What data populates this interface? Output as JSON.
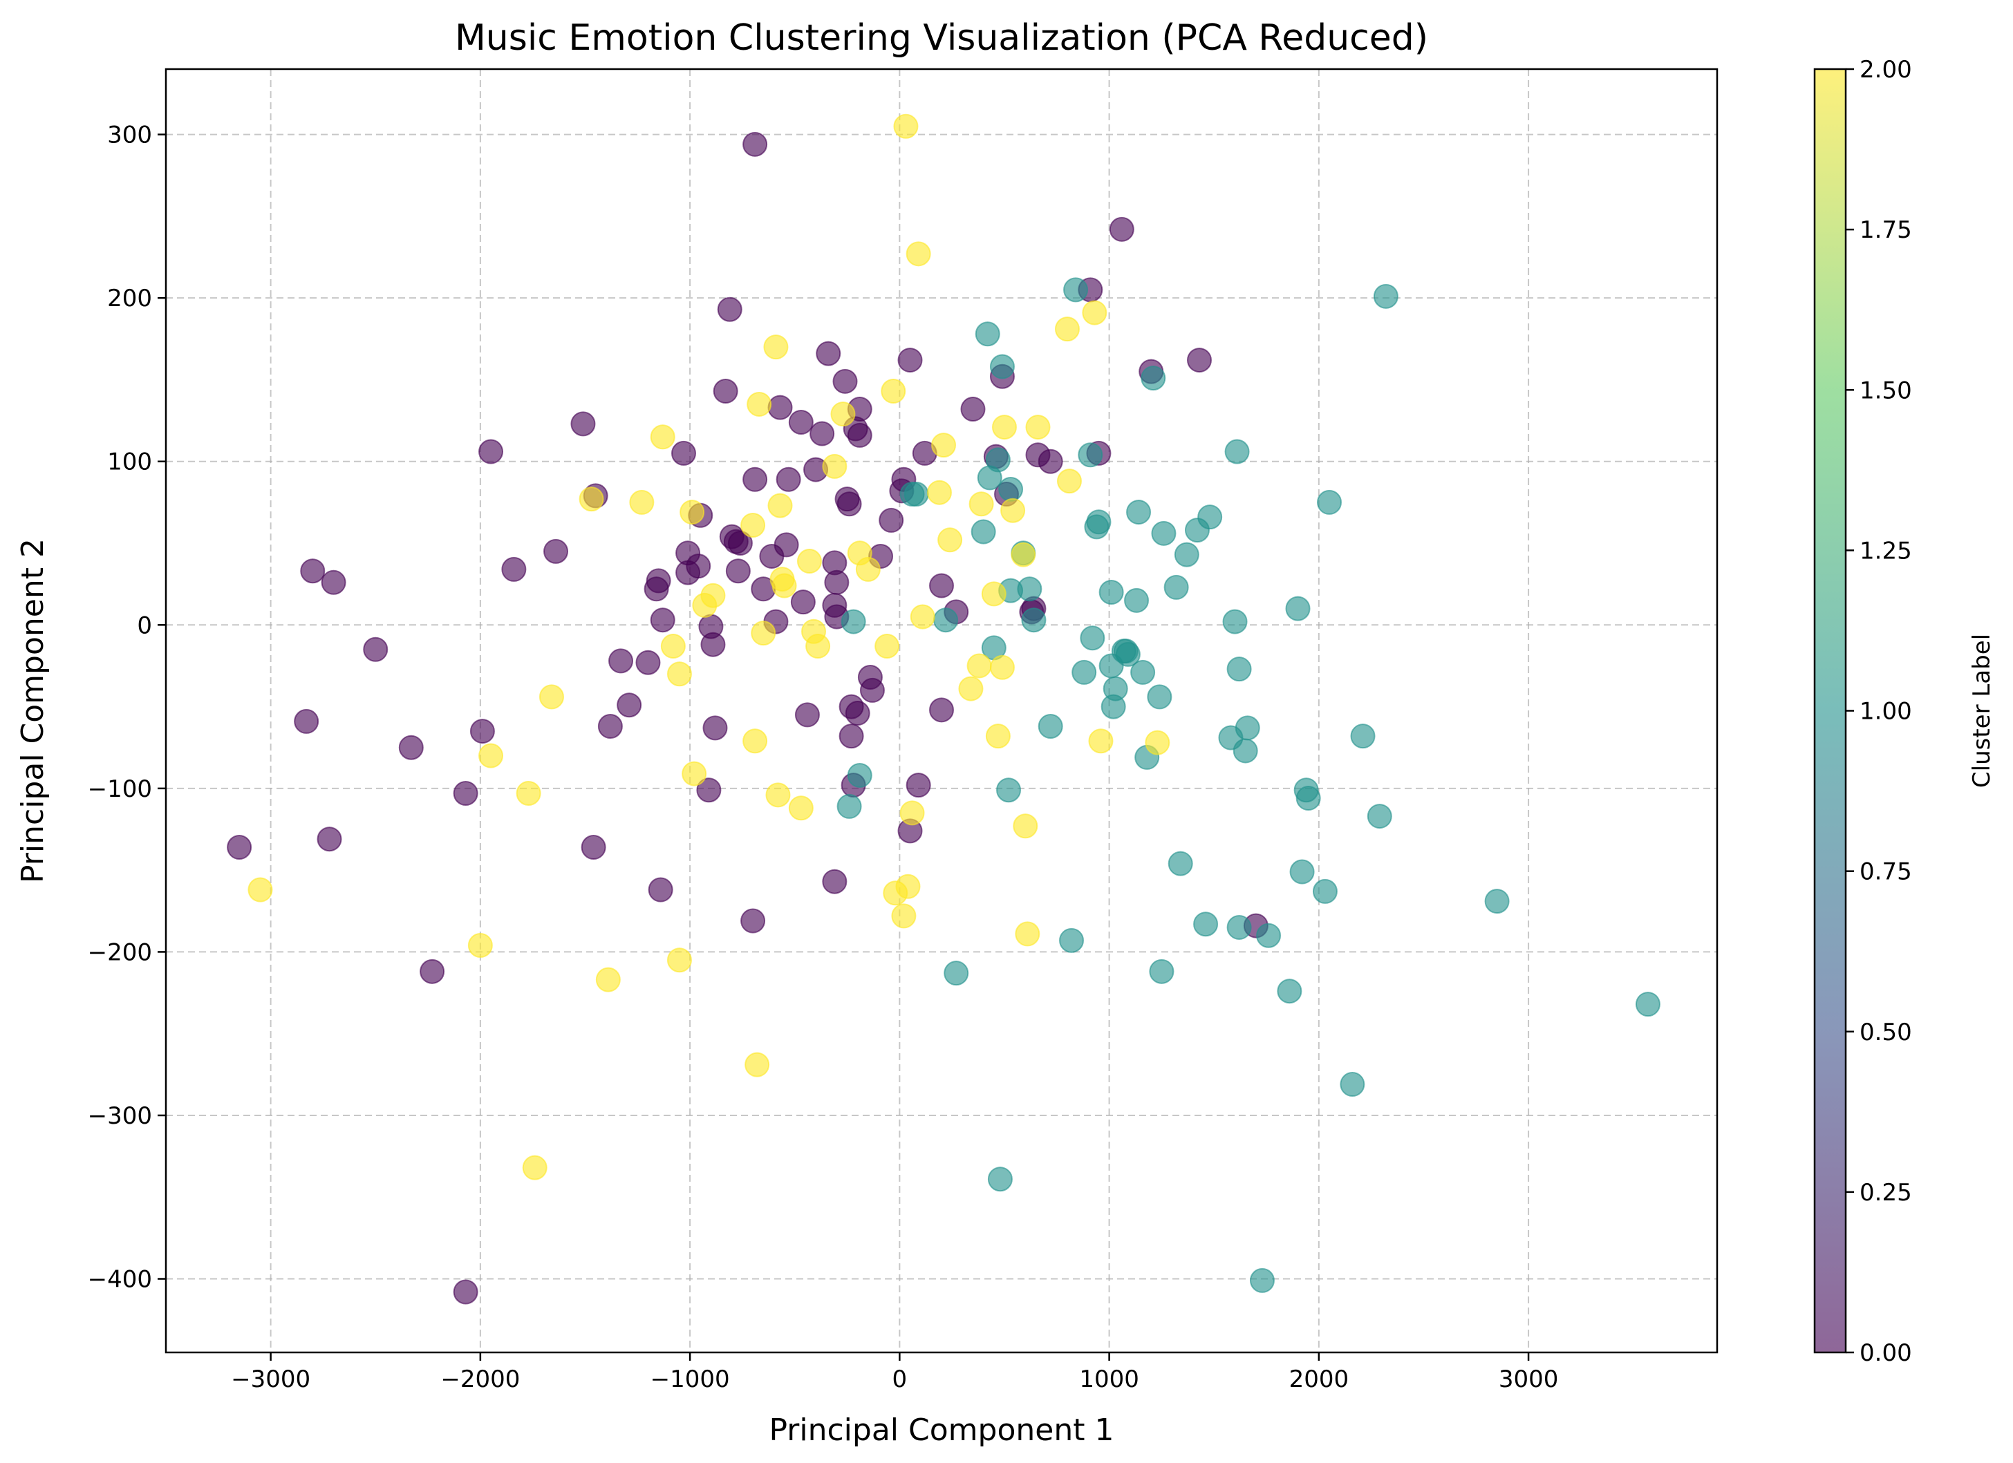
{
  "chart_data": {
    "type": "scatter",
    "title": "Music Emotion Clustering Visualization (PCA Reduced)",
    "xlabel": "Principal Component 1",
    "ylabel": "Principal Component 2",
    "xlim": [
      -3500,
      3900
    ],
    "ylim": [
      -445,
      340
    ],
    "xticks": [
      -3000,
      -2000,
      -1000,
      0,
      1000,
      2000,
      3000
    ],
    "xtick_labels": [
      "−3000",
      "−2000",
      "−1000",
      "0",
      "1000",
      "2000",
      "3000"
    ],
    "yticks": [
      -400,
      -300,
      -200,
      -100,
      0,
      100,
      200,
      300
    ],
    "ytick_labels": [
      "−400",
      "−300",
      "−200",
      "−100",
      "0",
      "100",
      "200",
      "300"
    ],
    "grid": true,
    "marker_alpha": 0.6,
    "colorbar": {
      "label": "Cluster Label",
      "range": [
        0,
        2
      ],
      "ticks": [
        0,
        0.25,
        0.5,
        0.75,
        1.0,
        1.25,
        1.5,
        1.75,
        2.0
      ],
      "tick_labels": [
        "0.00",
        "0.25",
        "0.50",
        "0.75",
        "1.00",
        "1.25",
        "1.50",
        "1.75",
        "2.00"
      ],
      "colormap_stops": [
        "#440154",
        "#3b528b",
        "#21918c",
        "#5ec962",
        "#fde725"
      ]
    },
    "series": [
      {
        "cluster": 0,
        "color": "#440154",
        "points": [
          [
            -3150,
            -136
          ],
          [
            -2800,
            33
          ],
          [
            -2720,
            -131
          ],
          [
            -2700,
            26
          ],
          [
            -2830,
            -59
          ],
          [
            -2500,
            -15
          ],
          [
            -2330,
            -75
          ],
          [
            -2230,
            -212
          ],
          [
            -2070,
            -103
          ],
          [
            -2070,
            -408
          ],
          [
            -1990,
            -65
          ],
          [
            -1950,
            106
          ],
          [
            -1840,
            34
          ],
          [
            -1640,
            45
          ],
          [
            -1510,
            123
          ],
          [
            -1450,
            79
          ],
          [
            -1460,
            -136
          ],
          [
            -1380,
            -62
          ],
          [
            -1330,
            -22
          ],
          [
            -1290,
            -49
          ],
          [
            -1200,
            -23
          ],
          [
            -1160,
            22
          ],
          [
            -1150,
            27
          ],
          [
            -1140,
            -162
          ],
          [
            -1130,
            3
          ],
          [
            -1030,
            105
          ],
          [
            -1010,
            32
          ],
          [
            -1010,
            44
          ],
          [
            -960,
            36
          ],
          [
            -950,
            67
          ],
          [
            -900,
            -1
          ],
          [
            -890,
            -12
          ],
          [
            -910,
            -101
          ],
          [
            -880,
            -63
          ],
          [
            -830,
            143
          ],
          [
            -810,
            193
          ],
          [
            -800,
            54
          ],
          [
            -780,
            51
          ],
          [
            -760,
            50
          ],
          [
            -770,
            33
          ],
          [
            -690,
            294
          ],
          [
            -690,
            89
          ],
          [
            -700,
            -181
          ],
          [
            -650,
            22
          ],
          [
            -610,
            42
          ],
          [
            -590,
            2
          ],
          [
            -570,
            133
          ],
          [
            -540,
            49
          ],
          [
            -530,
            89
          ],
          [
            -470,
            124
          ],
          [
            -460,
            14
          ],
          [
            -440,
            -55
          ],
          [
            -400,
            95
          ],
          [
            -370,
            117
          ],
          [
            -340,
            166
          ],
          [
            -310,
            38
          ],
          [
            -310,
            12
          ],
          [
            -300,
            26
          ],
          [
            -310,
            -157
          ],
          [
            -300,
            5
          ],
          [
            -260,
            149
          ],
          [
            -250,
            77
          ],
          [
            -240,
            74
          ],
          [
            -230,
            -50
          ],
          [
            -230,
            -68
          ],
          [
            -220,
            -98
          ],
          [
            -210,
            120
          ],
          [
            -200,
            -54
          ],
          [
            -190,
            116
          ],
          [
            -190,
            132
          ],
          [
            -140,
            -32
          ],
          [
            -130,
            -40
          ],
          [
            -90,
            42
          ],
          [
            -40,
            64
          ],
          [
            10,
            82
          ],
          [
            20,
            89
          ],
          [
            50,
            162
          ],
          [
            50,
            -126
          ],
          [
            90,
            -98
          ],
          [
            120,
            105
          ],
          [
            200,
            24
          ],
          [
            200,
            -52
          ],
          [
            270,
            8
          ],
          [
            350,
            132
          ],
          [
            460,
            103
          ],
          [
            490,
            152
          ],
          [
            510,
            80
          ],
          [
            640,
            10
          ],
          [
            630,
            8
          ],
          [
            660,
            104
          ],
          [
            720,
            100
          ],
          [
            910,
            205
          ],
          [
            950,
            105
          ],
          [
            1060,
            242
          ],
          [
            1200,
            155
          ],
          [
            1430,
            162
          ],
          [
            1700,
            -184
          ]
        ]
      },
      {
        "cluster": 1,
        "color": "#21918c",
        "points": [
          [
            -220,
            2
          ],
          [
            -190,
            -92
          ],
          [
            -240,
            -111
          ],
          [
            60,
            80
          ],
          [
            80,
            80
          ],
          [
            220,
            3
          ],
          [
            270,
            -213
          ],
          [
            400,
            57
          ],
          [
            420,
            178
          ],
          [
            430,
            90
          ],
          [
            450,
            -14
          ],
          [
            470,
            101
          ],
          [
            480,
            -339
          ],
          [
            490,
            158
          ],
          [
            520,
            -101
          ],
          [
            530,
            83
          ],
          [
            530,
            21
          ],
          [
            590,
            44
          ],
          [
            620,
            22
          ],
          [
            640,
            3
          ],
          [
            720,
            -62
          ],
          [
            820,
            -193
          ],
          [
            840,
            205
          ],
          [
            880,
            -29
          ],
          [
            910,
            104
          ],
          [
            920,
            -8
          ],
          [
            940,
            60
          ],
          [
            950,
            63
          ],
          [
            1010,
            20
          ],
          [
            1010,
            -25
          ],
          [
            1020,
            -50
          ],
          [
            1030,
            -39
          ],
          [
            1070,
            -16
          ],
          [
            1080,
            -16
          ],
          [
            1090,
            -18
          ],
          [
            1130,
            15
          ],
          [
            1140,
            69
          ],
          [
            1160,
            -29
          ],
          [
            1180,
            -81
          ],
          [
            1210,
            151
          ],
          [
            1240,
            -44
          ],
          [
            1250,
            -212
          ],
          [
            1260,
            56
          ],
          [
            1320,
            23
          ],
          [
            1340,
            -146
          ],
          [
            1370,
            43
          ],
          [
            1420,
            58
          ],
          [
            1460,
            -183
          ],
          [
            1480,
            66
          ],
          [
            1580,
            -69
          ],
          [
            1600,
            2
          ],
          [
            1610,
            106
          ],
          [
            1620,
            -27
          ],
          [
            1620,
            -185
          ],
          [
            1650,
            -77
          ],
          [
            1660,
            -63
          ],
          [
            1730,
            -401
          ],
          [
            1760,
            -190
          ],
          [
            1860,
            -224
          ],
          [
            1900,
            10
          ],
          [
            1920,
            -151
          ],
          [
            1940,
            -101
          ],
          [
            1950,
            -106
          ],
          [
            2030,
            -163
          ],
          [
            2050,
            75
          ],
          [
            2160,
            -281
          ],
          [
            2210,
            -68
          ],
          [
            2290,
            -117
          ],
          [
            2320,
            201
          ],
          [
            2850,
            -169
          ],
          [
            3570,
            -232
          ]
        ]
      },
      {
        "cluster": 2,
        "color": "#fde725",
        "points": [
          [
            -3050,
            -162
          ],
          [
            -2000,
            -196
          ],
          [
            -1950,
            -80
          ],
          [
            -1770,
            -103
          ],
          [
            -1740,
            -332
          ],
          [
            -1660,
            -44
          ],
          [
            -1470,
            77
          ],
          [
            -1390,
            -217
          ],
          [
            -1230,
            75
          ],
          [
            -1130,
            115
          ],
          [
            -1080,
            -13
          ],
          [
            -1050,
            -30
          ],
          [
            -1050,
            -205
          ],
          [
            -990,
            69
          ],
          [
            -980,
            -91
          ],
          [
            -930,
            12
          ],
          [
            -890,
            18
          ],
          [
            -700,
            61
          ],
          [
            -690,
            -71
          ],
          [
            -680,
            -269
          ],
          [
            -670,
            135
          ],
          [
            -650,
            -5
          ],
          [
            -590,
            170
          ],
          [
            -580,
            -104
          ],
          [
            -570,
            73
          ],
          [
            -560,
            28
          ],
          [
            -550,
            24
          ],
          [
            -470,
            -112
          ],
          [
            -430,
            39
          ],
          [
            -410,
            -4
          ],
          [
            -390,
            -13
          ],
          [
            -310,
            97
          ],
          [
            -270,
            129
          ],
          [
            -190,
            44
          ],
          [
            -150,
            34
          ],
          [
            -60,
            -13
          ],
          [
            -30,
            143
          ],
          [
            -20,
            -164
          ],
          [
            20,
            -178
          ],
          [
            30,
            305
          ],
          [
            40,
            -160
          ],
          [
            60,
            -115
          ],
          [
            90,
            227
          ],
          [
            110,
            5
          ],
          [
            190,
            81
          ],
          [
            210,
            110
          ],
          [
            240,
            52
          ],
          [
            340,
            -39
          ],
          [
            380,
            -25
          ],
          [
            390,
            74
          ],
          [
            450,
            19
          ],
          [
            470,
            -68
          ],
          [
            490,
            -26
          ],
          [
            500,
            121
          ],
          [
            540,
            70
          ],
          [
            590,
            43
          ],
          [
            600,
            -123
          ],
          [
            610,
            -189
          ],
          [
            660,
            121
          ],
          [
            800,
            181
          ],
          [
            810,
            88
          ],
          [
            930,
            191
          ],
          [
            960,
            -71
          ],
          [
            1230,
            -72
          ]
        ]
      }
    ]
  }
}
